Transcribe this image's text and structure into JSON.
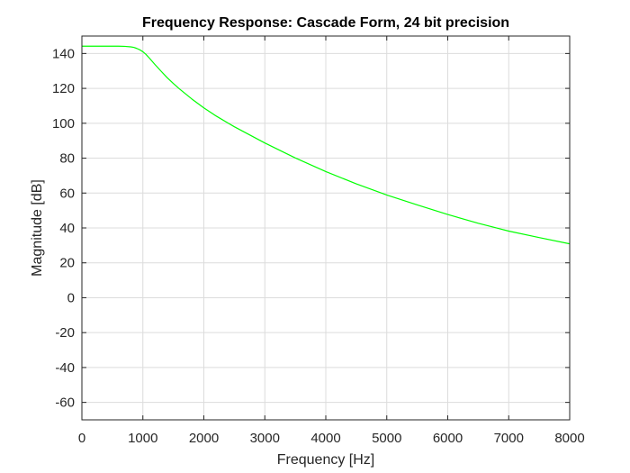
{
  "chart_data": {
    "type": "line",
    "title": "Frequency Response: Cascade Form, 24 bit precision",
    "xlabel": "Frequency [Hz]",
    "ylabel": "Magnitude [dB]",
    "xlim": [
      0,
      8000
    ],
    "ylim": [
      -70,
      150
    ],
    "xticks": [
      0,
      1000,
      2000,
      3000,
      4000,
      5000,
      6000,
      7000,
      8000
    ],
    "yticks": [
      -60,
      -40,
      -20,
      0,
      20,
      40,
      60,
      80,
      100,
      120,
      140
    ],
    "grid": true,
    "series": [
      {
        "name": "Cascade Form, 24 bit",
        "color": "#00ff00",
        "x": [
          0,
          200,
          400,
          600,
          700,
          800,
          850,
          900,
          950,
          1000,
          1050,
          1100,
          1200,
          1300,
          1400,
          1500,
          1600,
          1800,
          2000,
          2200,
          2500,
          3000,
          3500,
          4000,
          4500,
          5000,
          5500,
          6000,
          6500,
          7000,
          7500,
          8000
        ],
        "y": [
          144.2,
          144.2,
          144.2,
          144.2,
          144.1,
          143.8,
          143.5,
          142.9,
          142.1,
          141.0,
          139.5,
          137.6,
          133.6,
          129.8,
          126.1,
          122.8,
          119.7,
          114.0,
          108.8,
          104.2,
          98.0,
          88.7,
          80.1,
          72.3,
          65.3,
          58.9,
          53.2,
          47.7,
          42.7,
          38.2,
          34.5,
          30.9
        ]
      }
    ]
  }
}
